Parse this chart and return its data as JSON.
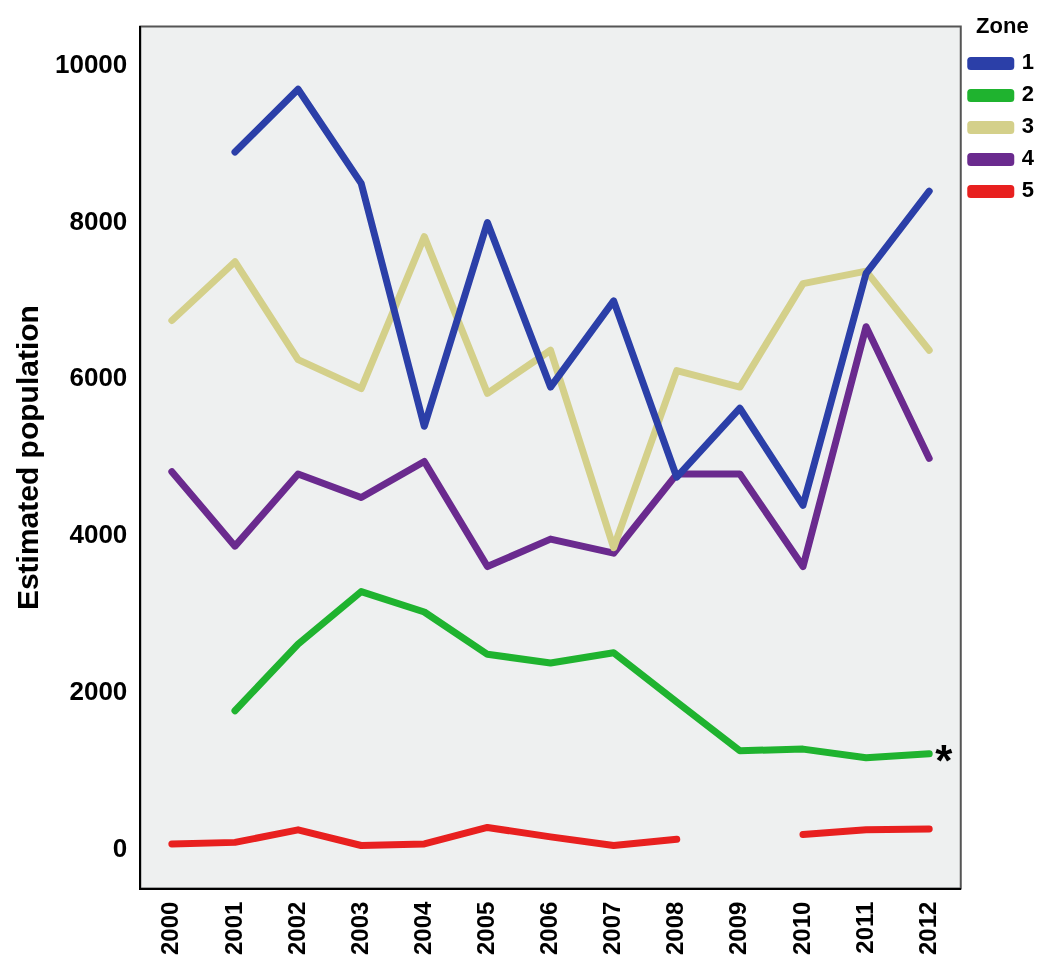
{
  "chart_data": {
    "type": "line",
    "ylabel": "Estimated population",
    "legend_title": "Zone",
    "legend": "top right",
    "grid": false,
    "marker": "none",
    "line_style": "solid",
    "categories": [
      "2000",
      "2001",
      "2002",
      "2003",
      "2004",
      "2005",
      "2006",
      "2007",
      "2008",
      "2009",
      "2010",
      "2011",
      "2012"
    ],
    "ylim": [
      -500,
      10500
    ],
    "yticks": [
      0,
      2000,
      4000,
      6000,
      8000,
      10000
    ],
    "series": [
      {
        "name": "1",
        "color": "#2b3fa8",
        "values": [
          null,
          8900,
          9700,
          8500,
          5400,
          8000,
          5900,
          7000,
          4750,
          5630,
          4390,
          7350,
          8400
        ]
      },
      {
        "name": "2",
        "color": "#1fb32f",
        "values": [
          null,
          1770,
          2620,
          3290,
          3030,
          2490,
          2380,
          2510,
          1880,
          1260,
          1280,
          1170,
          1220
        ]
      },
      {
        "name": "3",
        "color": "#d4d08a",
        "values": [
          6750,
          7500,
          6250,
          5880,
          7820,
          5820,
          6370,
          3850,
          6110,
          5900,
          7220,
          7380,
          6370
        ]
      },
      {
        "name": "4",
        "color": "#6a2a8e",
        "values": [
          4820,
          3870,
          4790,
          4490,
          4950,
          3610,
          3960,
          3780,
          4790,
          4790,
          3610,
          6670,
          4990
        ]
      },
      {
        "name": "5",
        "color": "#e8201f",
        "values": [
          70,
          90,
          250,
          50,
          70,
          280,
          160,
          50,
          130,
          null,
          190,
          250,
          260
        ]
      }
    ],
    "annotations": [
      {
        "text": "*",
        "x": "2012",
        "y": 1220
      }
    ]
  }
}
